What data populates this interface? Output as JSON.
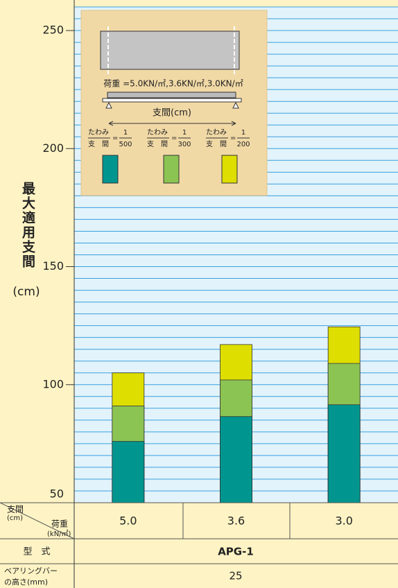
{
  "chart_data": {
    "type": "bar",
    "overlap": true,
    "y_axis_label": "最大適用支間",
    "y_axis_unit": "(cm)",
    "categories": [
      "5.0",
      "3.6",
      "3.0"
    ],
    "series": [
      {
        "name": "500",
        "color": "#00968f",
        "values": [
          76,
          86.5,
          91.5
        ]
      },
      {
        "name": "300",
        "color": "#8cc453",
        "values": [
          91,
          102,
          109
        ]
      },
      {
        "name": "200",
        "color": "#dede00",
        "values": [
          105,
          117,
          124.5
        ]
      }
    ],
    "ylim": [
      50,
      260
    ],
    "yticks": [
      50,
      100,
      150,
      200,
      250
    ],
    "grid": true,
    "grid_step": 5,
    "legend": {
      "numerator_top": "たわみ",
      "numerator_bottom": "支　間",
      "ratio": "1"
    },
    "diagram": {
      "load": "荷重 =5.0KN/㎡,3.6KN/㎡,3.0KN/㎡",
      "span": "支間(cm)"
    },
    "table": {
      "corner_top": "支間",
      "corner_top_unit": "(cm)",
      "corner_bottom": "荷重",
      "corner_bottom_unit": "(kN/㎡)",
      "model_header": "型　式",
      "model": "APG-1",
      "height_header": [
        "ベアリングバー",
        "の高さ(mm)"
      ],
      "height": "25"
    }
  }
}
